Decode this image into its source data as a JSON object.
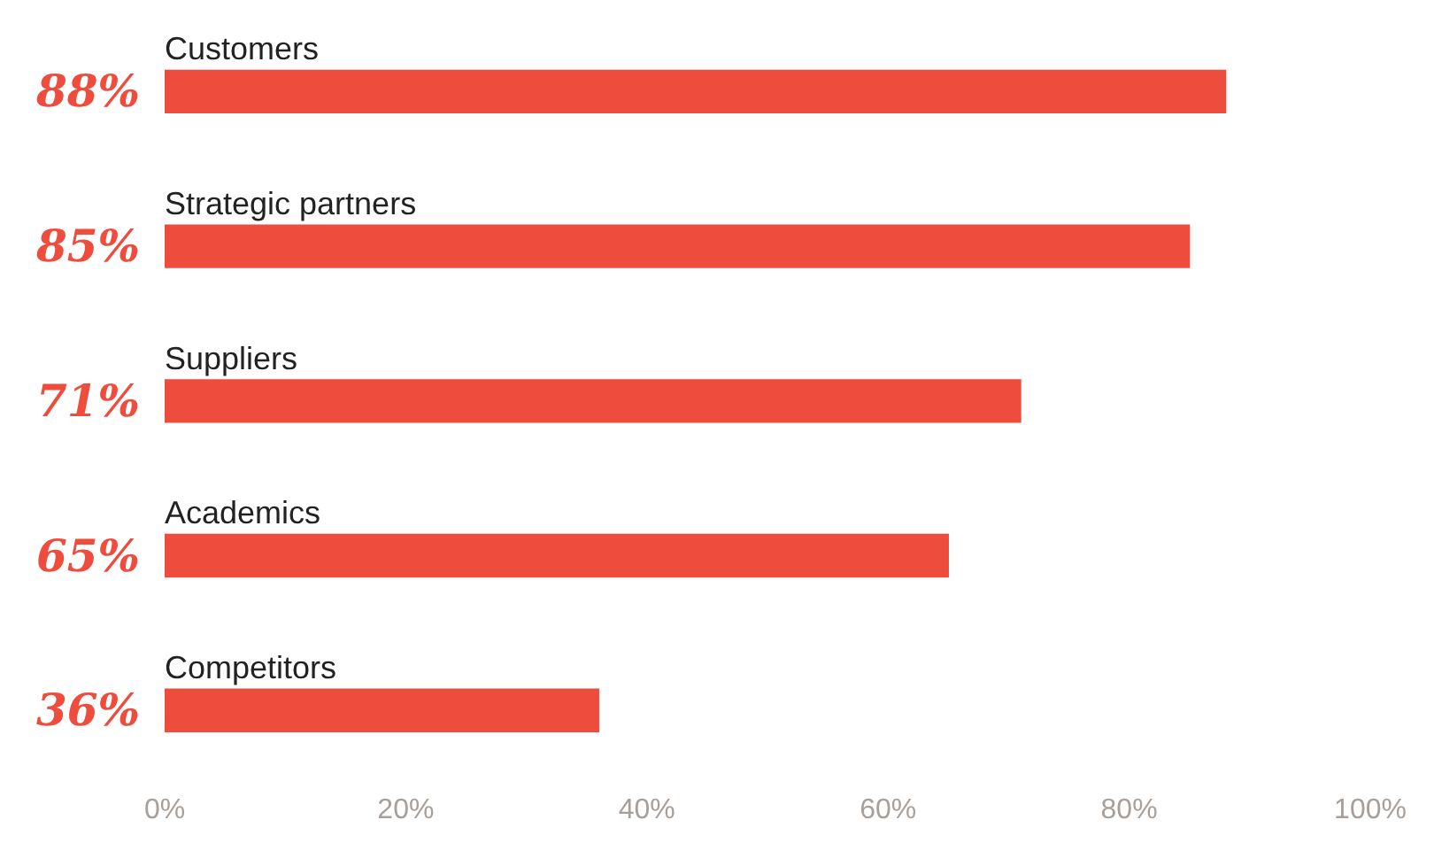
{
  "chart_data": {
    "type": "bar",
    "orientation": "horizontal",
    "categories": [
      "Customers",
      "Strategic partners",
      "Suppliers",
      "Academics",
      "Competitors"
    ],
    "values": [
      88,
      85,
      71,
      65,
      36
    ],
    "value_labels": [
      "88%",
      "85%",
      "71%",
      "65%",
      "36%"
    ],
    "color": "#ee4d3d",
    "xlim": [
      0,
      100
    ],
    "xticks": [
      {
        "value": 0,
        "label": "0%"
      },
      {
        "value": 20,
        "label": "20%"
      },
      {
        "value": 40,
        "label": "40%"
      },
      {
        "value": 60,
        "label": "60%"
      },
      {
        "value": 80,
        "label": "80%"
      },
      {
        "value": 100,
        "label": "100%"
      }
    ],
    "tick_labels": "x",
    "grid": false,
    "legend": false
  }
}
